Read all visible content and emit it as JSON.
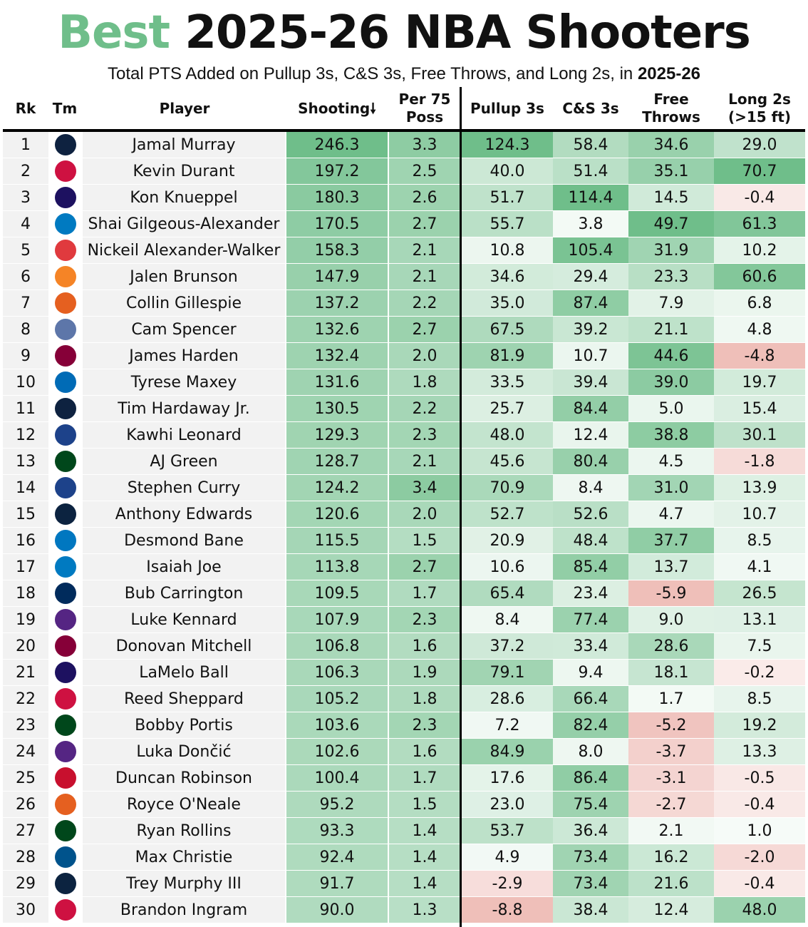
{
  "chart_data": {
    "type": "table",
    "title_highlight": "Best",
    "title_rest": "2025-26 NBA Shooters",
    "subtitle_text": "Total PTS Added on Pullup 3s, C&S 3s, Free Throws, and Long 2s, in",
    "subtitle_season": "2025-26",
    "columns": {
      "rk": "Rk",
      "tm": "Tm",
      "player": "Player",
      "shooting": "Shooting🠗",
      "per75": [
        "Per 75",
        "Poss"
      ],
      "pullup": "Pullup 3s",
      "cs": "C&S 3s",
      "ft": [
        "Free",
        "Throws"
      ],
      "long2": [
        "Long 2s",
        "(>15 ft)"
      ]
    },
    "rows": [
      {
        "rk": "1",
        "team": "DEN",
        "player": "Jamal Murray",
        "shooting": 246.3,
        "per75": 3.3,
        "pullup": 124.3,
        "cs": 58.4,
        "ft": 34.6,
        "long2": 29.0
      },
      {
        "rk": "2",
        "team": "HOU",
        "player": "Kevin Durant",
        "shooting": 197.2,
        "per75": 2.5,
        "pullup": 40.0,
        "cs": 51.4,
        "ft": 35.1,
        "long2": 70.7
      },
      {
        "rk": "3",
        "team": "CHA",
        "player": "Kon Knueppel",
        "shooting": 180.3,
        "per75": 2.6,
        "pullup": 51.7,
        "cs": 114.4,
        "ft": 14.5,
        "long2": -0.4
      },
      {
        "rk": "4",
        "team": "OKC",
        "player": "Shai Gilgeous-Alexander",
        "shooting": 170.5,
        "per75": 2.7,
        "pullup": 55.7,
        "cs": 3.8,
        "ft": 49.7,
        "long2": 61.3
      },
      {
        "rk": "5",
        "team": "ATL",
        "player": "Nickeil Alexander-Walker",
        "shooting": 158.3,
        "per75": 2.1,
        "pullup": 10.8,
        "cs": 105.4,
        "ft": 31.9,
        "long2": 10.2
      },
      {
        "rk": "6",
        "team": "NYK",
        "player": "Jalen Brunson",
        "shooting": 147.9,
        "per75": 2.1,
        "pullup": 34.6,
        "cs": 29.4,
        "ft": 23.3,
        "long2": 60.6
      },
      {
        "rk": "7",
        "team": "PHX",
        "player": "Collin Gillespie",
        "shooting": 137.2,
        "per75": 2.2,
        "pullup": 35.0,
        "cs": 87.4,
        "ft": 7.9,
        "long2": 6.8
      },
      {
        "rk": "8",
        "team": "MEM",
        "player": "Cam Spencer",
        "shooting": 132.6,
        "per75": 2.7,
        "pullup": 67.5,
        "cs": 39.2,
        "ft": 21.1,
        "long2": 4.8
      },
      {
        "rk": "9",
        "team": "CLE",
        "player": "James Harden",
        "shooting": 132.4,
        "per75": 2.0,
        "pullup": 81.9,
        "cs": 10.7,
        "ft": 44.6,
        "long2": -4.8
      },
      {
        "rk": "10",
        "team": "PHI",
        "player": "Tyrese Maxey",
        "shooting": 131.6,
        "per75": 1.8,
        "pullup": 33.5,
        "cs": 39.4,
        "ft": 39.0,
        "long2": 19.7
      },
      {
        "rk": "11",
        "team": "DEN",
        "player": "Tim Hardaway Jr.",
        "shooting": 130.5,
        "per75": 2.2,
        "pullup": 25.7,
        "cs": 84.4,
        "ft": 5.0,
        "long2": 15.4
      },
      {
        "rk": "12",
        "team": "LAC",
        "player": "Kawhi Leonard",
        "shooting": 129.3,
        "per75": 2.3,
        "pullup": 48.0,
        "cs": 12.4,
        "ft": 38.8,
        "long2": 30.1
      },
      {
        "rk": "13",
        "team": "MIL",
        "player": "AJ Green",
        "shooting": 128.7,
        "per75": 2.1,
        "pullup": 45.6,
        "cs": 80.4,
        "ft": 4.5,
        "long2": -1.8
      },
      {
        "rk": "14",
        "team": "GSW",
        "player": "Stephen Curry",
        "shooting": 124.2,
        "per75": 3.4,
        "pullup": 70.9,
        "cs": 8.4,
        "ft": 31.0,
        "long2": 13.9
      },
      {
        "rk": "15",
        "team": "MIN",
        "player": "Anthony Edwards",
        "shooting": 120.6,
        "per75": 2.0,
        "pullup": 52.7,
        "cs": 52.6,
        "ft": 4.7,
        "long2": 10.7
      },
      {
        "rk": "16",
        "team": "ORL",
        "player": "Desmond Bane",
        "shooting": 115.5,
        "per75": 1.5,
        "pullup": 20.9,
        "cs": 48.4,
        "ft": 37.7,
        "long2": 8.5
      },
      {
        "rk": "17",
        "team": "OKC",
        "player": "Isaiah Joe",
        "shooting": 113.8,
        "per75": 2.7,
        "pullup": 10.6,
        "cs": 85.4,
        "ft": 13.7,
        "long2": 4.1
      },
      {
        "rk": "18",
        "team": "WAS",
        "player": "Bub Carrington",
        "shooting": 109.5,
        "per75": 1.7,
        "pullup": 65.4,
        "cs": 23.4,
        "ft": -5.9,
        "long2": 26.5
      },
      {
        "rk": "19",
        "team": "LAL",
        "player": "Luke Kennard",
        "shooting": 107.9,
        "per75": 2.3,
        "pullup": 8.4,
        "cs": 77.4,
        "ft": 9.0,
        "long2": 13.1
      },
      {
        "rk": "20",
        "team": "CLE",
        "player": "Donovan Mitchell",
        "shooting": 106.8,
        "per75": 1.6,
        "pullup": 37.2,
        "cs": 33.4,
        "ft": 28.6,
        "long2": 7.5
      },
      {
        "rk": "21",
        "team": "CHA",
        "player": "LaMelo Ball",
        "shooting": 106.3,
        "per75": 1.9,
        "pullup": 79.1,
        "cs": 9.4,
        "ft": 18.1,
        "long2": -0.2
      },
      {
        "rk": "22",
        "team": "HOU",
        "player": "Reed Sheppard",
        "shooting": 105.2,
        "per75": 1.8,
        "pullup": 28.6,
        "cs": 66.4,
        "ft": 1.7,
        "long2": 8.5
      },
      {
        "rk": "23",
        "team": "MIL",
        "player": "Bobby Portis",
        "shooting": 103.6,
        "per75": 2.3,
        "pullup": 7.2,
        "cs": 82.4,
        "ft": -5.2,
        "long2": 19.2
      },
      {
        "rk": "24",
        "team": "LAL",
        "player": "Luka Dončić",
        "shooting": 102.6,
        "per75": 1.6,
        "pullup": 84.9,
        "cs": 8.0,
        "ft": -3.7,
        "long2": 13.3
      },
      {
        "rk": "25",
        "team": "DET",
        "player": "Duncan Robinson",
        "shooting": 100.4,
        "per75": 1.7,
        "pullup": 17.6,
        "cs": 86.4,
        "ft": -3.1,
        "long2": -0.5
      },
      {
        "rk": "26",
        "team": "PHX",
        "player": "Royce O'Neale",
        "shooting": 95.2,
        "per75": 1.5,
        "pullup": 23.0,
        "cs": 75.4,
        "ft": -2.7,
        "long2": -0.4
      },
      {
        "rk": "27",
        "team": "MIL",
        "player": "Ryan Rollins",
        "shooting": 93.3,
        "per75": 1.4,
        "pullup": 53.7,
        "cs": 36.4,
        "ft": 2.1,
        "long2": 1.0
      },
      {
        "rk": "28",
        "team": "DAL",
        "player": "Max Christie",
        "shooting": 92.4,
        "per75": 1.4,
        "pullup": 4.9,
        "cs": 73.4,
        "ft": 16.2,
        "long2": -2.0
      },
      {
        "rk": "29",
        "team": "NOP",
        "player": "Trey Murphy III",
        "shooting": 91.7,
        "per75": 1.4,
        "pullup": -2.9,
        "cs": 73.4,
        "ft": 21.6,
        "long2": -0.4
      },
      {
        "rk": "30",
        "team": "TOR",
        "player": "Brandon Ingram",
        "shooting": 90.0,
        "per75": 1.3,
        "pullup": -8.8,
        "cs": 38.4,
        "ft": 12.4,
        "long2": 48.0
      }
    ],
    "color_scale": {
      "positive": "#6fbe8a",
      "negative": "#e8a39b",
      "neutral": "#ffffff"
    },
    "team_colors": {
      "DEN": "#0e2240",
      "HOU": "#ce1141",
      "CHA": "#1d1160",
      "OKC": "#007ac1",
      "ATL": "#e03a3e",
      "NYK": "#f58426",
      "PHX": "#e56020",
      "MEM": "#5d76a9",
      "CLE": "#860038",
      "PHI": "#006bb6",
      "LAC": "#1d428a",
      "MIL": "#00471b",
      "GSW": "#1d428a",
      "MIN": "#0c2340",
      "ORL": "#0077c0",
      "WAS": "#002b5c",
      "LAL": "#552583",
      "DET": "#c8102e",
      "DAL": "#00538c",
      "NOP": "#0c2340",
      "TOR": "#ce1141"
    }
  }
}
